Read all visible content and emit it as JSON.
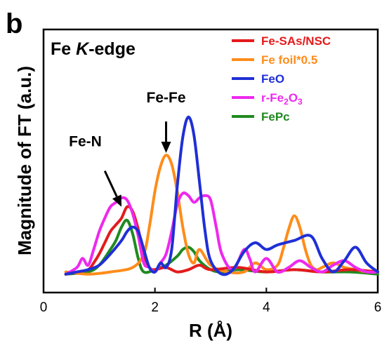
{
  "chart_data": {
    "type": "line",
    "panel_label": "b",
    "annotation_title": {
      "prefix": "Fe ",
      "italic": "K",
      "suffix": "-edge"
    },
    "xlabel": "R (Å)",
    "ylabel": "Magnitude of FT (a.u.)",
    "xlim": [
      0,
      6
    ],
    "ylim": [
      0,
      1.1
    ],
    "xticks": [
      "0",
      "2",
      "4",
      "6"
    ],
    "xtick_values": [
      0,
      2,
      4,
      6
    ],
    "grid": false,
    "legend_position": "top-right",
    "annotations": [
      {
        "label": "Fe-N",
        "text_x": 0.75,
        "text_y": 0.58,
        "arrow_from": [
          1.1,
          0.47
        ],
        "arrow_to": [
          1.4,
          0.31
        ]
      },
      {
        "label": "Fe-Fe",
        "text_x": 2.2,
        "text_y": 0.775,
        "arrow_from": [
          2.2,
          0.69
        ],
        "arrow_to": [
          2.2,
          0.55
        ]
      }
    ],
    "series": [
      {
        "name": "Fe-SAs/NSC",
        "color": "#e41a1c",
        "x": [
          0.4,
          0.6,
          0.8,
          0.9,
          1.0,
          1.1,
          1.2,
          1.3,
          1.4,
          1.5,
          1.6,
          1.7,
          1.8,
          1.9,
          2.0,
          2.2,
          2.4,
          2.6,
          2.8,
          3.0,
          3.5,
          4.0,
          4.5,
          5.0,
          5.5,
          6.0
        ],
        "y": [
          0.01,
          0.02,
          0.03,
          0.06,
          0.1,
          0.15,
          0.2,
          0.23,
          0.26,
          0.31,
          0.29,
          0.21,
          0.1,
          0.04,
          0.03,
          0.04,
          0.02,
          0.03,
          0.05,
          0.03,
          0.04,
          0.02,
          0.03,
          0.02,
          0.03,
          0.02
        ]
      },
      {
        "name": "Fe foil*0.5",
        "color": "#ff8c1a",
        "x": [
          0.4,
          0.8,
          1.2,
          1.6,
          1.8,
          1.9,
          2.0,
          2.1,
          2.2,
          2.3,
          2.4,
          2.5,
          2.6,
          2.7,
          2.8,
          3.0,
          3.3,
          3.6,
          3.8,
          4.0,
          4.2,
          4.3,
          4.4,
          4.5,
          4.6,
          4.7,
          4.8,
          4.9,
          5.0,
          5.2,
          5.4,
          5.6,
          5.8,
          6.0
        ],
        "y": [
          0.02,
          0.01,
          0.02,
          0.04,
          0.1,
          0.22,
          0.38,
          0.49,
          0.54,
          0.5,
          0.38,
          0.22,
          0.1,
          0.06,
          0.12,
          0.05,
          0.02,
          0.02,
          0.06,
          0.03,
          0.05,
          0.12,
          0.21,
          0.27,
          0.22,
          0.12,
          0.05,
          0.03,
          0.04,
          0.06,
          0.04,
          0.03,
          0.02,
          0.02
        ]
      },
      {
        "name": "FeO",
        "color": "#1f2fd6",
        "x": [
          0.4,
          0.6,
          0.8,
          1.0,
          1.2,
          1.4,
          1.5,
          1.6,
          1.7,
          1.8,
          1.9,
          2.0,
          2.1,
          2.2,
          2.3,
          2.4,
          2.5,
          2.6,
          2.7,
          2.8,
          2.9,
          3.0,
          3.2,
          3.4,
          3.6,
          3.8,
          4.0,
          4.2,
          4.5,
          4.8,
          5.0,
          5.2,
          5.4,
          5.6,
          5.8,
          6.0
        ],
        "y": [
          0.01,
          0.02,
          0.03,
          0.05,
          0.1,
          0.16,
          0.2,
          0.22,
          0.2,
          0.12,
          0.04,
          0.02,
          0.06,
          0.04,
          0.12,
          0.4,
          0.62,
          0.71,
          0.63,
          0.42,
          0.2,
          0.07,
          0.01,
          0.03,
          0.11,
          0.15,
          0.12,
          0.14,
          0.16,
          0.18,
          0.08,
          0.02,
          0.07,
          0.13,
          0.06,
          0.02
        ]
      },
      {
        "name": "r-Fe₂O₃",
        "color": "#ee28ee",
        "x": [
          0.4,
          0.6,
          0.7,
          0.8,
          0.9,
          1.0,
          1.1,
          1.2,
          1.3,
          1.4,
          1.5,
          1.6,
          1.7,
          1.8,
          1.9,
          2.0,
          2.1,
          2.2,
          2.3,
          2.4,
          2.5,
          2.6,
          2.7,
          2.8,
          2.9,
          3.0,
          3.1,
          3.2,
          3.4,
          3.6,
          3.7,
          3.8,
          4.0,
          4.2,
          4.4,
          4.6,
          4.8,
          5.0,
          5.2,
          5.4,
          5.6,
          5.8,
          6.0
        ],
        "y": [
          0.01,
          0.04,
          0.08,
          0.05,
          0.12,
          0.2,
          0.26,
          0.31,
          0.33,
          0.35,
          0.34,
          0.28,
          0.18,
          0.06,
          0.04,
          0.02,
          0.06,
          0.1,
          0.2,
          0.32,
          0.37,
          0.36,
          0.33,
          0.35,
          0.36,
          0.34,
          0.22,
          0.1,
          0.03,
          0.12,
          0.08,
          0.02,
          0.08,
          0.02,
          0.04,
          0.07,
          0.04,
          0.02,
          0.05,
          0.07,
          0.04,
          0.02,
          0.02
        ]
      },
      {
        "name": "FePc",
        "color": "#1f8a1f",
        "x": [
          0.4,
          0.8,
          1.0,
          1.2,
          1.3,
          1.4,
          1.5,
          1.6,
          1.7,
          1.8,
          2.0,
          2.2,
          2.4,
          2.5,
          2.6,
          2.7,
          2.8,
          3.0,
          3.2,
          3.5,
          4.0,
          4.5,
          5.0,
          5.5,
          6.0
        ],
        "y": [
          0.01,
          0.02,
          0.05,
          0.12,
          0.16,
          0.22,
          0.25,
          0.19,
          0.08,
          0.02,
          0.03,
          0.05,
          0.09,
          0.12,
          0.13,
          0.11,
          0.07,
          0.03,
          0.02,
          0.03,
          0.02,
          0.03,
          0.02,
          0.02,
          0.01
        ]
      }
    ]
  }
}
